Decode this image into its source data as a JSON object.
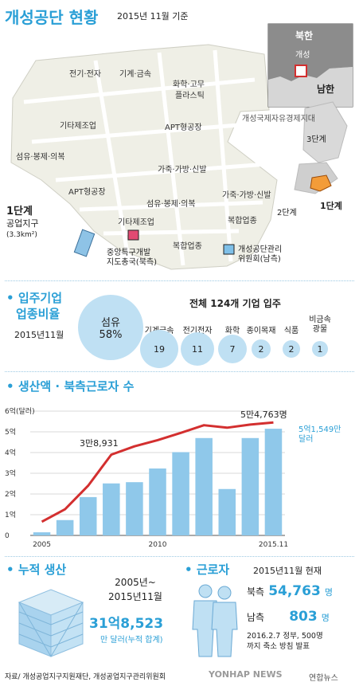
{
  "header": {
    "title": "개성공단 현황",
    "date_note": "2015년 11월 기준"
  },
  "map": {
    "zones": [
      "전기·전자",
      "기계·금속",
      "화학·고무",
      "플라스틱",
      "기타제조업",
      "APT형공장",
      "섬유·봉제·의복",
      "가죽·가방·신발",
      "APT형공장",
      "섬유·봉제·의복",
      "가죽·가방·신발",
      "기타제조업",
      "복합업종",
      "복합업종"
    ],
    "phase1_title": "1단계",
    "phase1_subtitle": "공업지구",
    "phase1_area": "(3.3km²)",
    "landmark1_line1": "중앙특구개발",
    "landmark1_line2": "지도총국(북측)",
    "landmark2_line1": "개성공단관리",
    "landmark2_line2": "위원회(남측)",
    "inset": {
      "north": "북한",
      "city": "개성",
      "south": "남한",
      "zone_name": "개성국제자유경제지대",
      "stage3": "3단계",
      "stage2": "2단계",
      "stage1": "1단계"
    }
  },
  "industry": {
    "title_line1": "입주기업",
    "title_line2": "업종비율",
    "date": "2015년11월",
    "total_text": "전체 124개 기업 입주",
    "main_name": "섬유",
    "main_share": "58%",
    "items": [
      {
        "name": "기계금속",
        "count": "19"
      },
      {
        "name": "전기전자",
        "count": "11"
      },
      {
        "name": "화학",
        "count": "7"
      },
      {
        "name": "종이목재",
        "count": "2"
      },
      {
        "name": "식품",
        "count": "2"
      },
      {
        "name": "비금속\n광물",
        "count": "1"
      }
    ]
  },
  "production": {
    "title": "생산액 · 북측근로자 수",
    "y_axis_unit": "6억(달러)",
    "annotation_workers_2007": "3만8,931",
    "annotation_workers_2015": "5만4,763명",
    "annotation_value_line1": "5억1,549만",
    "annotation_value_line2": "달러"
  },
  "chart_data": {
    "type": "bar",
    "title": "생산액 · 북측근로자 수",
    "categories": [
      "2005",
      "2006",
      "2007",
      "2008",
      "2009",
      "2010",
      "2011",
      "2012",
      "2013",
      "2014",
      "2015.11"
    ],
    "x_tick_labels": [
      "2005",
      "2010",
      "2015.11"
    ],
    "y_ticks": [
      "6억(달러)",
      "5억",
      "4억",
      "3억",
      "2억",
      "1억",
      "0"
    ],
    "ylim": [
      0,
      6
    ],
    "series": [
      {
        "name": "생산액",
        "values": [
          0.15,
          0.74,
          1.85,
          2.51,
          2.57,
          3.23,
          4.02,
          4.7,
          2.24,
          4.7,
          5.15
        ]
      },
      {
        "name": "북측근로자 수",
        "values": [
          0.66,
          1.26,
          2.4,
          3.9,
          4.3,
          4.6,
          4.95,
          5.32,
          5.2,
          5.35,
          5.45
        ]
      }
    ],
    "colors": {
      "bars": "#8fc8ea",
      "line": "#d32f2f"
    },
    "grid": true
  },
  "cumulative": {
    "title": "누적 생산",
    "period_line1": "2005년~",
    "period_line2": "2015년11월",
    "value": "31억8,523",
    "unit": "만 달러(누적 합계)"
  },
  "workers": {
    "title": "근로자",
    "date": "2015년11월 현재",
    "north_label": "북측",
    "north_value": "54,763",
    "north_unit": "명",
    "south_label": "남측",
    "south_value": "803",
    "south_unit": "명",
    "note_line1": "2016.2.7 정부, 500명",
    "note_line2": "까지 축소 방침 발표"
  },
  "footer": {
    "source": "자료/ 개성공업지구지원재단, 개성공업지구관리위원회",
    "watermark": "YONHAP NEWS",
    "agency": "연합뉴스"
  }
}
